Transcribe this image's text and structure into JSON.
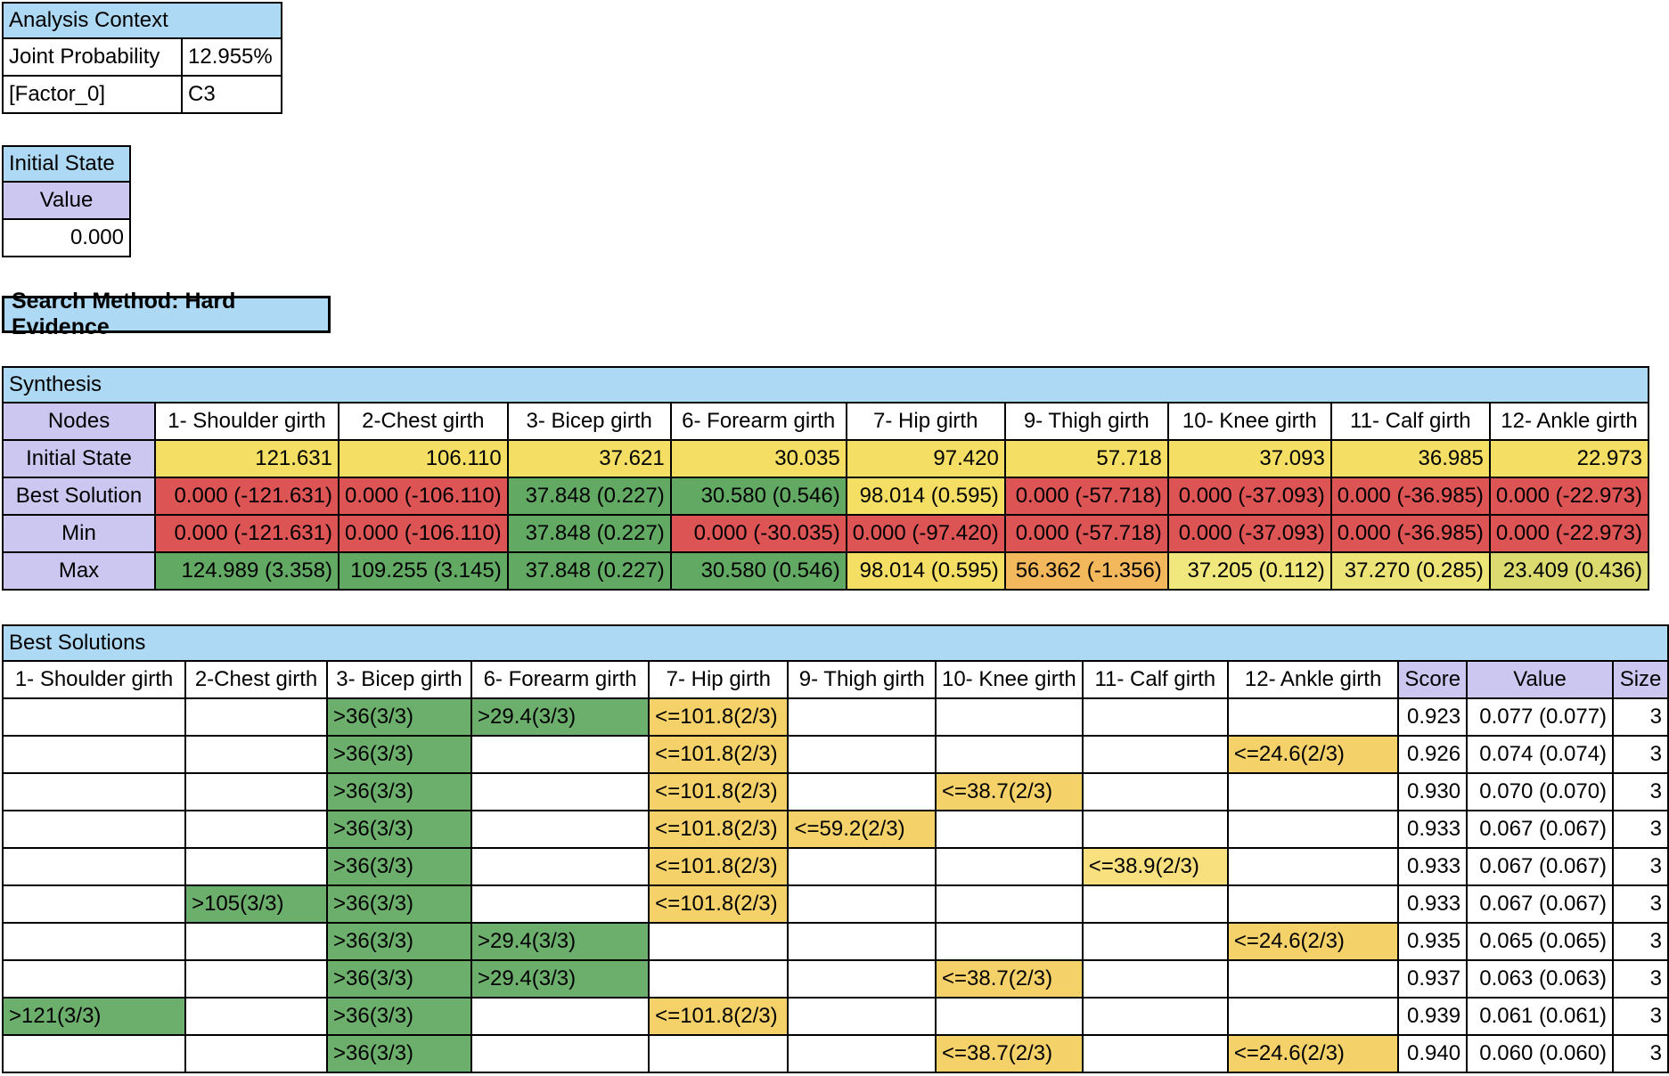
{
  "colors": {
    "blue": "#AED9F4",
    "lavender": "#CCC7F1",
    "yellow": "#F4DE63",
    "red": "#DC5454",
    "green": "#62A963",
    "green2": "#6CAE6C",
    "gold": "#F5D169",
    "gold_light": "#F8E07E",
    "orange": "#F4B85C",
    "pale_yellow": "#F0E87C",
    "pale_yellow2": "#EDE478",
    "yellow_green": "#DBDB70",
    "border": "#000000",
    "background": "#FFFFFF"
  },
  "analysis_context": {
    "title": "Analysis Context",
    "rows": [
      {
        "label": "Joint Probability",
        "value": "12.955%"
      },
      {
        "label": "[Factor_0]",
        "value": "C3"
      }
    ]
  },
  "initial_state_panel": {
    "title": "Initial State",
    "header": "Value",
    "value": "0.000"
  },
  "search_method": {
    "label": "Search Method: Hard Evidence"
  },
  "synthesis": {
    "title": "Synthesis",
    "nodes_header": "Nodes",
    "columns": [
      "1- Shoulder girth",
      "2-Chest girth",
      "3- Bicep girth",
      "6- Forearm girth",
      "7- Hip girth",
      "9- Thigh girth",
      "10- Knee girth",
      "11- Calf girth",
      "12- Ankle girth"
    ],
    "rows": [
      {
        "label": "Initial State",
        "cells": [
          {
            "text": "121.631",
            "color": "yellow"
          },
          {
            "text": "106.110",
            "color": "yellow"
          },
          {
            "text": "37.621",
            "color": "yellow"
          },
          {
            "text": "30.035",
            "color": "yellow"
          },
          {
            "text": "97.420",
            "color": "yellow"
          },
          {
            "text": "57.718",
            "color": "yellow"
          },
          {
            "text": "37.093",
            "color": "yellow"
          },
          {
            "text": "36.985",
            "color": "yellow"
          },
          {
            "text": "22.973",
            "color": "yellow"
          }
        ]
      },
      {
        "label": "Best Solution",
        "cells": [
          {
            "text": "0.000 (-121.631)",
            "color": "red"
          },
          {
            "text": "0.000 (-106.110)",
            "color": "red"
          },
          {
            "text": "37.848 (0.227)",
            "color": "green"
          },
          {
            "text": "30.580 (0.546)",
            "color": "green"
          },
          {
            "text": "98.014 (0.595)",
            "color": "yellow"
          },
          {
            "text": "0.000 (-57.718)",
            "color": "red"
          },
          {
            "text": "0.000 (-37.093)",
            "color": "red"
          },
          {
            "text": "0.000 (-36.985)",
            "color": "red"
          },
          {
            "text": "0.000 (-22.973)",
            "color": "red"
          }
        ]
      },
      {
        "label": "Min",
        "cells": [
          {
            "text": "0.000 (-121.631)",
            "color": "red"
          },
          {
            "text": "0.000 (-106.110)",
            "color": "red"
          },
          {
            "text": "37.848 (0.227)",
            "color": "green"
          },
          {
            "text": "0.000 (-30.035)",
            "color": "red"
          },
          {
            "text": "0.000 (-97.420)",
            "color": "red"
          },
          {
            "text": "0.000 (-57.718)",
            "color": "red"
          },
          {
            "text": "0.000 (-37.093)",
            "color": "red"
          },
          {
            "text": "0.000 (-36.985)",
            "color": "red"
          },
          {
            "text": "0.000 (-22.973)",
            "color": "red"
          }
        ]
      },
      {
        "label": "Max",
        "cells": [
          {
            "text": "124.989 (3.358)",
            "color": "green"
          },
          {
            "text": "109.255 (3.145)",
            "color": "green"
          },
          {
            "text": "37.848 (0.227)",
            "color": "green"
          },
          {
            "text": "30.580 (0.546)",
            "color": "green"
          },
          {
            "text": "98.014 (0.595)",
            "color": "yellow"
          },
          {
            "text": "56.362 (-1.356)",
            "color": "orange"
          },
          {
            "text": "37.205 (0.112)",
            "color": "pale_yellow"
          },
          {
            "text": "37.270 (0.285)",
            "color": "pale_yellow2"
          },
          {
            "text": "23.409 (0.436)",
            "color": "yellow_green"
          }
        ]
      }
    ]
  },
  "best_solutions": {
    "title": "Best Solutions",
    "columns": [
      "1- Shoulder girth",
      "2-Chest girth",
      "3- Bicep girth",
      "6- Forearm girth",
      "7- Hip girth",
      "9- Thigh girth",
      "10- Knee girth",
      "11- Calf girth",
      "12- Ankle girth",
      "Score",
      "Value",
      "Size"
    ],
    "rows": [
      {
        "cells": [
          null,
          null,
          {
            "text": ">36(3/3)",
            "color": "green2"
          },
          {
            "text": ">29.4(3/3)",
            "color": "green2"
          },
          {
            "text": "<=101.8(2/3)",
            "color": "gold"
          },
          null,
          null,
          null,
          null
        ],
        "score": "0.923",
        "value": "0.077 (0.077)",
        "size": "3"
      },
      {
        "cells": [
          null,
          null,
          {
            "text": ">36(3/3)",
            "color": "green2"
          },
          null,
          {
            "text": "<=101.8(2/3)",
            "color": "gold"
          },
          null,
          null,
          null,
          {
            "text": "<=24.6(2/3)",
            "color": "gold"
          }
        ],
        "score": "0.926",
        "value": "0.074 (0.074)",
        "size": "3"
      },
      {
        "cells": [
          null,
          null,
          {
            "text": ">36(3/3)",
            "color": "green2"
          },
          null,
          {
            "text": "<=101.8(2/3)",
            "color": "gold"
          },
          null,
          {
            "text": "<=38.7(2/3)",
            "color": "gold"
          },
          null,
          null
        ],
        "score": "0.930",
        "value": "0.070 (0.070)",
        "size": "3"
      },
      {
        "cells": [
          null,
          null,
          {
            "text": ">36(3/3)",
            "color": "green2"
          },
          null,
          {
            "text": "<=101.8(2/3)",
            "color": "gold"
          },
          {
            "text": "<=59.2(2/3)",
            "color": "gold"
          },
          null,
          null,
          null
        ],
        "score": "0.933",
        "value": "0.067 (0.067)",
        "size": "3"
      },
      {
        "cells": [
          null,
          null,
          {
            "text": ">36(3/3)",
            "color": "green2"
          },
          null,
          {
            "text": "<=101.8(2/3)",
            "color": "gold"
          },
          null,
          null,
          {
            "text": "<=38.9(2/3)",
            "color": "gold_light"
          },
          null
        ],
        "score": "0.933",
        "value": "0.067 (0.067)",
        "size": "3"
      },
      {
        "cells": [
          null,
          {
            "text": ">105(3/3)",
            "color": "green2"
          },
          {
            "text": ">36(3/3)",
            "color": "green2"
          },
          null,
          {
            "text": "<=101.8(2/3)",
            "color": "gold"
          },
          null,
          null,
          null,
          null
        ],
        "score": "0.933",
        "value": "0.067 (0.067)",
        "size": "3"
      },
      {
        "cells": [
          null,
          null,
          {
            "text": ">36(3/3)",
            "color": "green2"
          },
          {
            "text": ">29.4(3/3)",
            "color": "green2"
          },
          null,
          null,
          null,
          null,
          {
            "text": "<=24.6(2/3)",
            "color": "gold"
          }
        ],
        "score": "0.935",
        "value": "0.065 (0.065)",
        "size": "3"
      },
      {
        "cells": [
          null,
          null,
          {
            "text": ">36(3/3)",
            "color": "green2"
          },
          {
            "text": ">29.4(3/3)",
            "color": "green2"
          },
          null,
          null,
          {
            "text": "<=38.7(2/3)",
            "color": "gold"
          },
          null,
          null
        ],
        "score": "0.937",
        "value": "0.063 (0.063)",
        "size": "3"
      },
      {
        "cells": [
          {
            "text": ">121(3/3)",
            "color": "green2"
          },
          null,
          {
            "text": ">36(3/3)",
            "color": "green2"
          },
          null,
          {
            "text": "<=101.8(2/3)",
            "color": "gold"
          },
          null,
          null,
          null,
          null
        ],
        "score": "0.939",
        "value": "0.061 (0.061)",
        "size": "3"
      },
      {
        "cells": [
          null,
          null,
          {
            "text": ">36(3/3)",
            "color": "green2"
          },
          null,
          null,
          null,
          {
            "text": "<=38.7(2/3)",
            "color": "gold"
          },
          null,
          {
            "text": "<=24.6(2/3)",
            "color": "gold"
          }
        ],
        "score": "0.940",
        "value": "0.060 (0.060)",
        "size": "3"
      }
    ]
  }
}
